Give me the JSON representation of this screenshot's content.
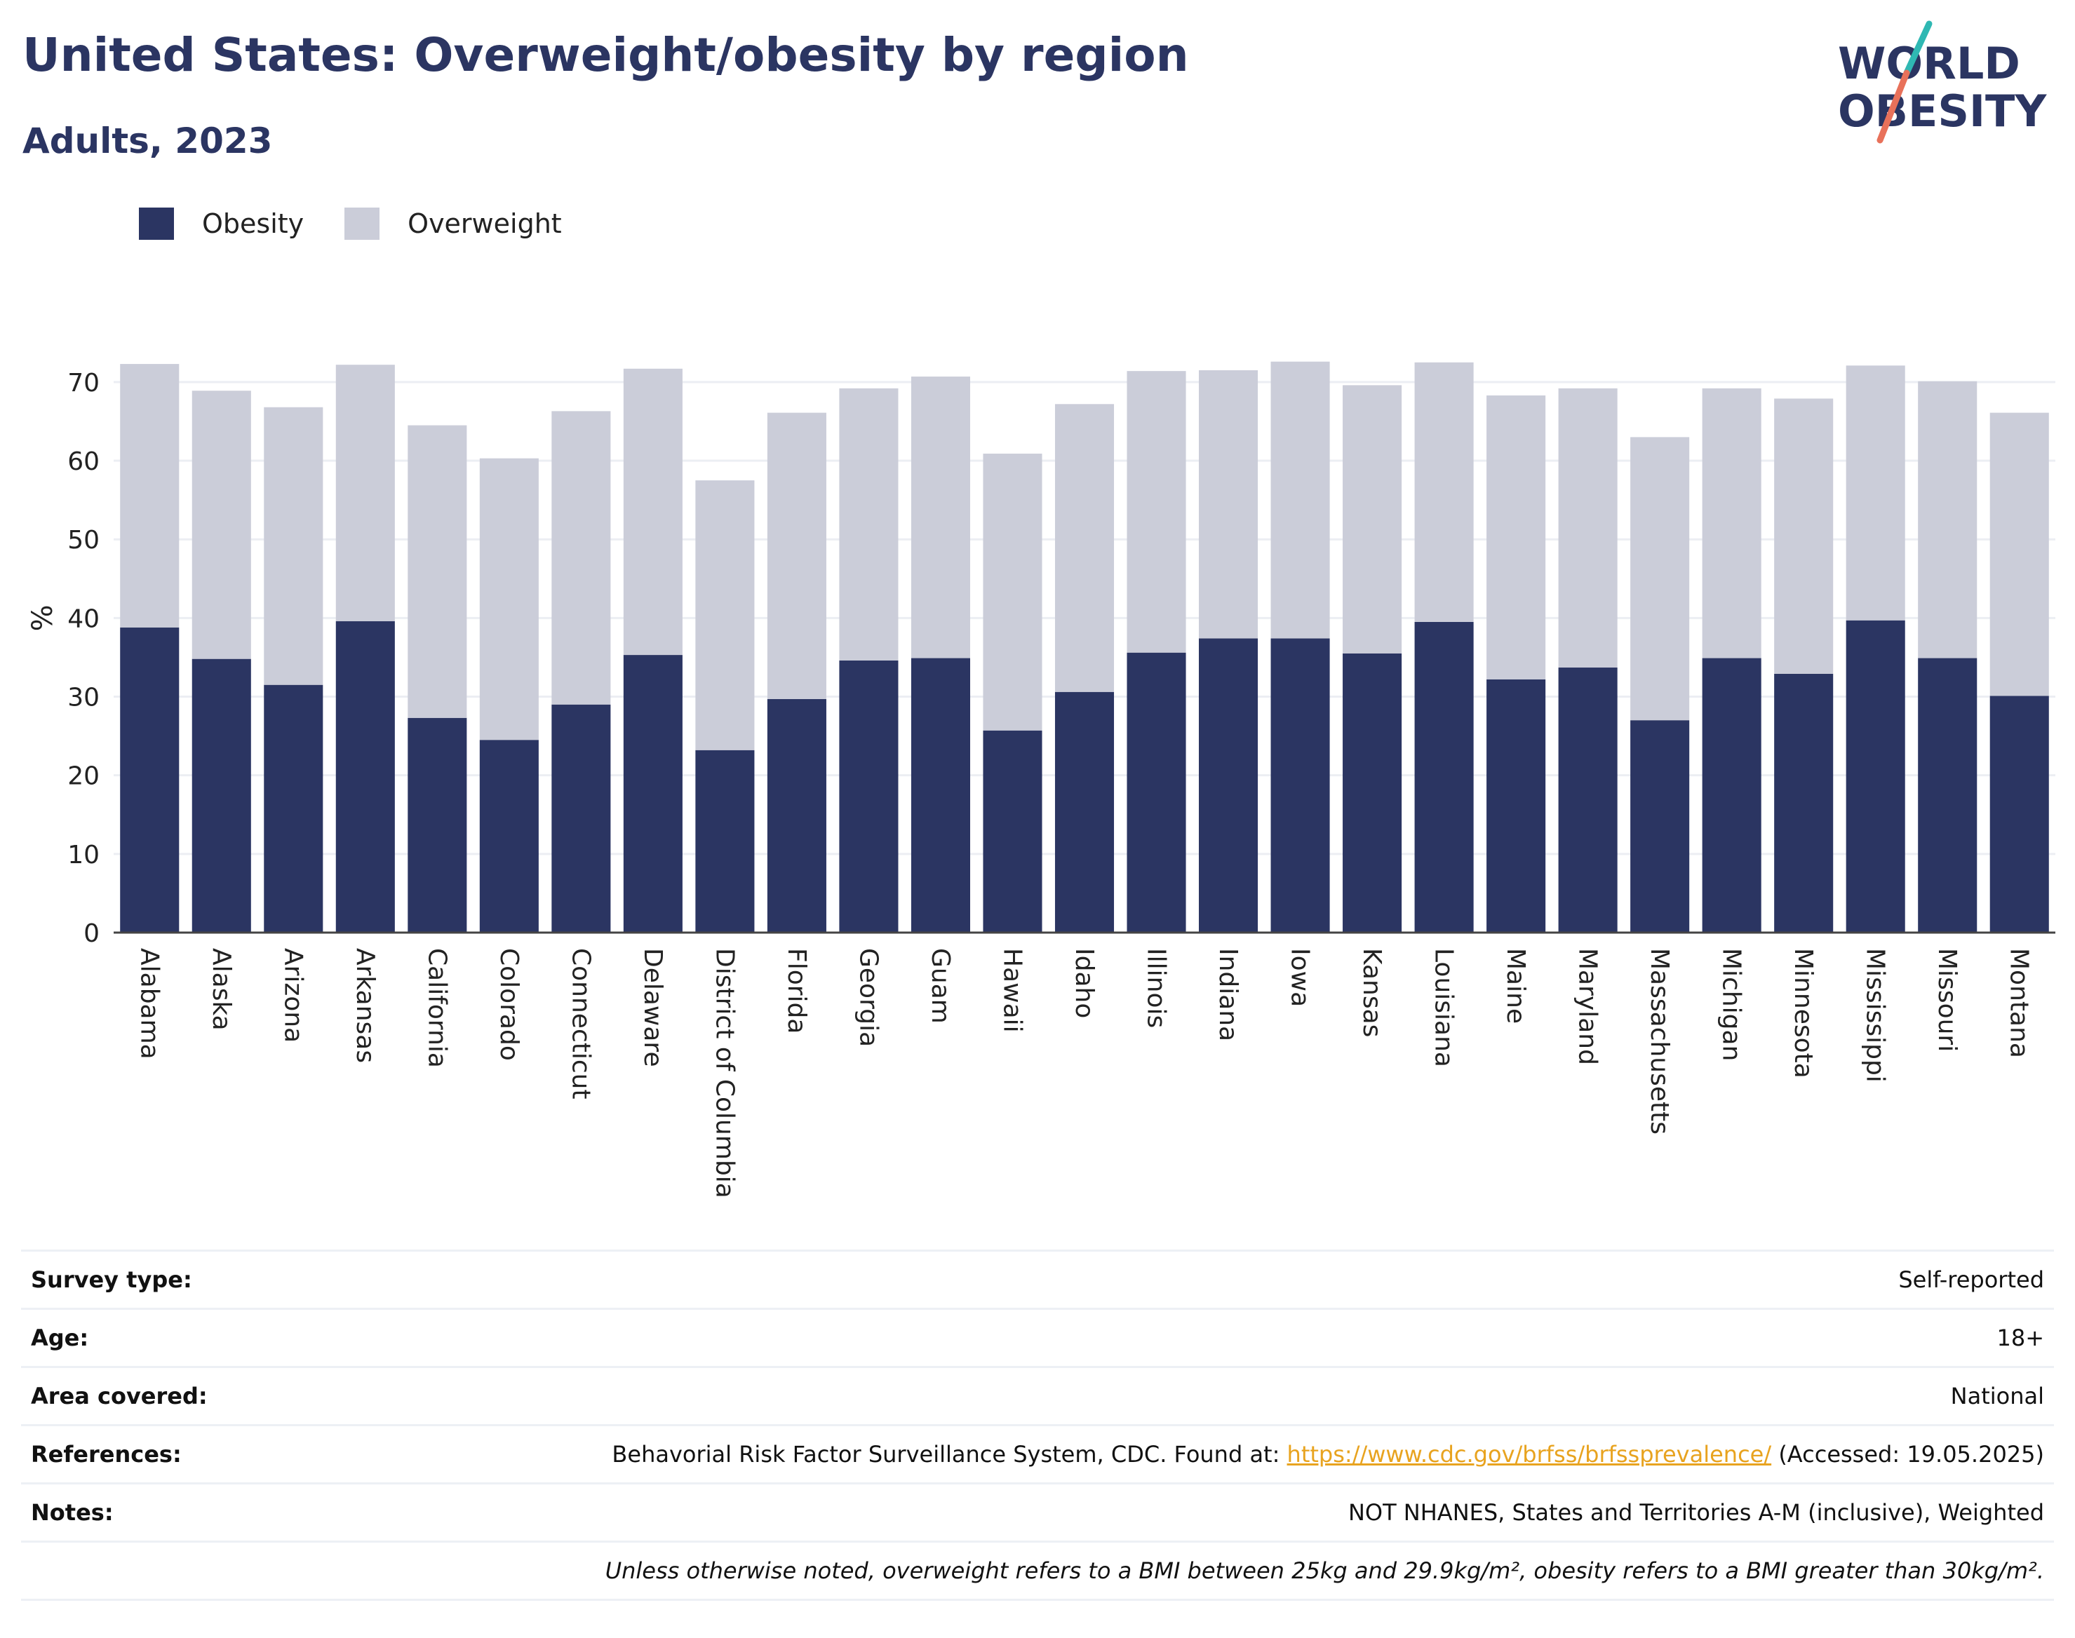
{
  "header": {
    "title": "United States: Overweight/obesity by region",
    "subtitle": "Adults, 2023"
  },
  "logo": {
    "line1": "WORLD",
    "line2": "OBESITY"
  },
  "colors": {
    "obesity": "#2b3562",
    "overweight": "#cbcdd9",
    "accent_teal": "#2fb8b3",
    "accent_coral": "#e8715a",
    "link": "#e8a31f"
  },
  "legend": [
    {
      "label": "Obesity",
      "color": "#2b3562"
    },
    {
      "label": "Overweight",
      "color": "#cbcdd9"
    }
  ],
  "chart_data": {
    "type": "bar",
    "stacked": true,
    "ylabel": "%",
    "ylim": [
      0,
      74
    ],
    "yticks": [
      0,
      10,
      20,
      30,
      40,
      50,
      60,
      70
    ],
    "grid": true,
    "legend_position": "top-left",
    "categories": [
      "Alabama",
      "Alaska",
      "Arizona",
      "Arkansas",
      "California",
      "Colorado",
      "Connecticut",
      "Delaware",
      "District of Columbia",
      "Florida",
      "Georgia",
      "Guam",
      "Hawaii",
      "Idaho",
      "Illinois",
      "Indiana",
      "Iowa",
      "Kansas",
      "Louisiana",
      "Maine",
      "Maryland",
      "Massachusetts",
      "Michigan",
      "Minnesota",
      "Mississippi",
      "Missouri",
      "Montana"
    ],
    "series": [
      {
        "name": "Obesity",
        "values": [
          38.8,
          34.8,
          31.5,
          39.6,
          27.3,
          24.5,
          29.0,
          35.3,
          23.2,
          29.7,
          34.6,
          34.9,
          25.7,
          30.6,
          35.6,
          37.4,
          37.4,
          35.5,
          39.5,
          32.2,
          33.7,
          27.0,
          34.9,
          32.9,
          39.7,
          34.9,
          30.1
        ]
      },
      {
        "name": "Overweight",
        "values": [
          33.5,
          34.1,
          35.3,
          32.6,
          37.2,
          35.8,
          37.3,
          36.4,
          34.3,
          36.4,
          34.6,
          35.8,
          35.2,
          36.6,
          35.8,
          34.1,
          35.2,
          34.1,
          33.0,
          36.1,
          35.5,
          36.0,
          34.3,
          35.0,
          32.4,
          35.2,
          36.0
        ]
      }
    ]
  },
  "info": {
    "survey_type": {
      "label": "Survey type:",
      "value": "Self-reported"
    },
    "age": {
      "label": "Age:",
      "value": "18+"
    },
    "area": {
      "label": "Area covered:",
      "value": "National"
    },
    "references": {
      "label": "References:",
      "text_before": "Behavorial Risk Factor Surveillance System, CDC. Found at:",
      "link": "https://www.cdc.gov/brfss/brfssprevalence/",
      "text_after": "(Accessed: 19.05.2025)"
    },
    "notes": {
      "label": "Notes:",
      "value": "NOT NHANES, States and Territories A-M (inclusive), Weighted"
    },
    "footnote": "Unless otherwise noted, overweight refers to a BMI between 25kg and 29.9kg/m², obesity refers to a BMI greater than 30kg/m²."
  }
}
